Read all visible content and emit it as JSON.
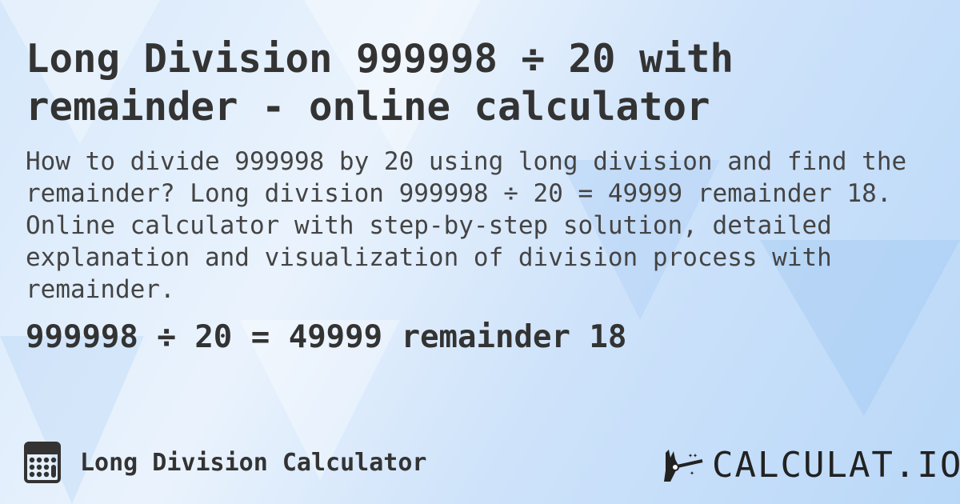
{
  "title": "Long Division 999998 ÷ 20 with remainder - online calculator",
  "description": "How to divide 999998 by 20 using long division and find the remainder? Long division 999998 ÷ 20 = 49999 remainder 18. Online calculator with step-by-step solution, detailed explanation and visualization of division process with remainder.",
  "result": "999998 ÷ 20 = 49999 remainder 18",
  "footer": {
    "label": "Long Division Calculator",
    "icon": "calculator-icon"
  },
  "logo": {
    "text": "CALCULAT.IO",
    "icon": "magic-hand-icon"
  }
}
